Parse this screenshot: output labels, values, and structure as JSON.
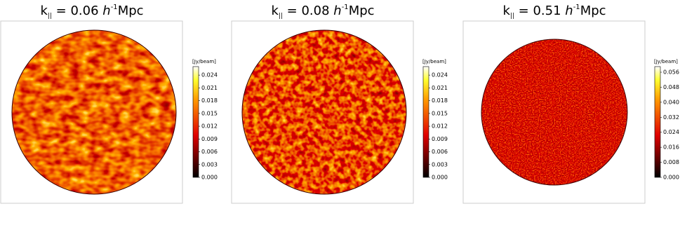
{
  "panels": [
    {
      "title": {
        "symbol": "k",
        "subscript": "||",
        "text": " = 0.06 ",
        "unit_italic": "h",
        "unit_sup": "-1",
        "unit": "Mpc"
      },
      "colorbar": {
        "label": "[Jy/beam]",
        "lim": [
          0,
          0.026
        ],
        "ticks": [
          {
            "value": 0,
            "label": "0.000"
          },
          0.003,
          0.006,
          0.009,
          0.012,
          0.015,
          0.018,
          0.021,
          0.024
        ]
      }
    },
    {
      "title": {
        "symbol": "k",
        "subscript": "||",
        "text": " = 0.08 ",
        "unit_italic": "h",
        "unit_sup": "-1",
        "unit": "Mpc"
      },
      "colorbar": {
        "label": "[Jy/beam]",
        "lim": [
          0,
          0.026
        ],
        "ticks": [
          {
            "value": 0,
            "label": "0.000"
          },
          0.003,
          0.006,
          0.009,
          0.012,
          0.015,
          0.018,
          0.021,
          0.024
        ]
      }
    },
    {
      "title": {
        "symbol": "k",
        "subscript": "||",
        "text": " = 0.51 ",
        "unit_italic": "h",
        "unit_sup": "-1",
        "unit": "Mpc"
      },
      "colorbar": {
        "label": "[Jy/beam]",
        "lim": [
          0,
          0.059
        ],
        "ticks": [
          {
            "value": 0,
            "label": "0.000"
          },
          0.008,
          0.016,
          0.024,
          0.032,
          {
            "value": 0.04,
            "label": "0.040"
          },
          0.048,
          0.056
        ]
      }
    }
  ]
}
